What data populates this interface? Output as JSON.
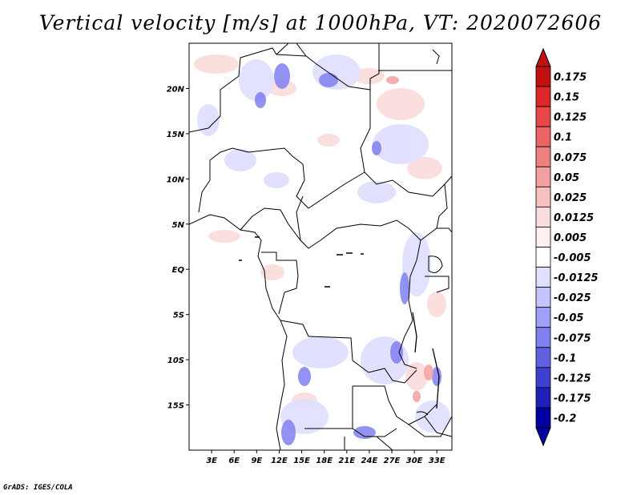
{
  "title": "Vertical velocity [m/s] at 1000hPa, VT: 2020072606",
  "footer": "GrADS: IGES/COLA",
  "map": {
    "lon_ticks": [
      "3E",
      "6E",
      "9E",
      "12E",
      "15E",
      "18E",
      "21E",
      "24E",
      "27E",
      "30E",
      "33E"
    ],
    "lat_ticks": [
      "20N",
      "15N",
      "10N",
      "5N",
      "EQ",
      "5S",
      "10S",
      "15S"
    ],
    "lon_range": [
      0,
      35
    ],
    "lat_range": [
      -20,
      25
    ]
  },
  "colorbar": {
    "labels": [
      "0.175",
      "0.15",
      "0.125",
      "0.1",
      "0.075",
      "0.05",
      "0.025",
      "0.0125",
      "0.005",
      "-0.005",
      "-0.0125",
      "-0.025",
      "-0.05",
      "-0.075",
      "-0.1",
      "-0.125",
      "-0.175",
      "-0.2"
    ],
    "colors": [
      "#c01010",
      "#dc2828",
      "#e84848",
      "#ec6464",
      "#f08080",
      "#f4a0a0",
      "#f8c0c0",
      "#fbdcdc",
      "#fff0f0",
      "#ffffff",
      "#e0e0ff",
      "#c4c4ff",
      "#a0a0f8",
      "#8080f0",
      "#6060e0",
      "#4040d0",
      "#2020b8",
      "#0000a0"
    ]
  },
  "chart_data": {
    "type": "heatmap",
    "title": "Vertical velocity [m/s] at 1000hPa, VT: 2020072606",
    "xlabel": "",
    "ylabel": "",
    "x_ticks": [
      "3E",
      "6E",
      "9E",
      "12E",
      "15E",
      "18E",
      "21E",
      "24E",
      "27E",
      "30E",
      "33E"
    ],
    "y_ticks": [
      "20N",
      "15N",
      "10N",
      "5N",
      "EQ",
      "5S",
      "10S",
      "15S"
    ],
    "color_levels": [
      0.175,
      0.15,
      0.125,
      0.1,
      0.075,
      0.05,
      0.025,
      0.0125,
      0.005,
      -0.005,
      -0.0125,
      -0.025,
      -0.05,
      -0.075,
      -0.1,
      -0.125,
      -0.175,
      -0.2
    ]
  }
}
